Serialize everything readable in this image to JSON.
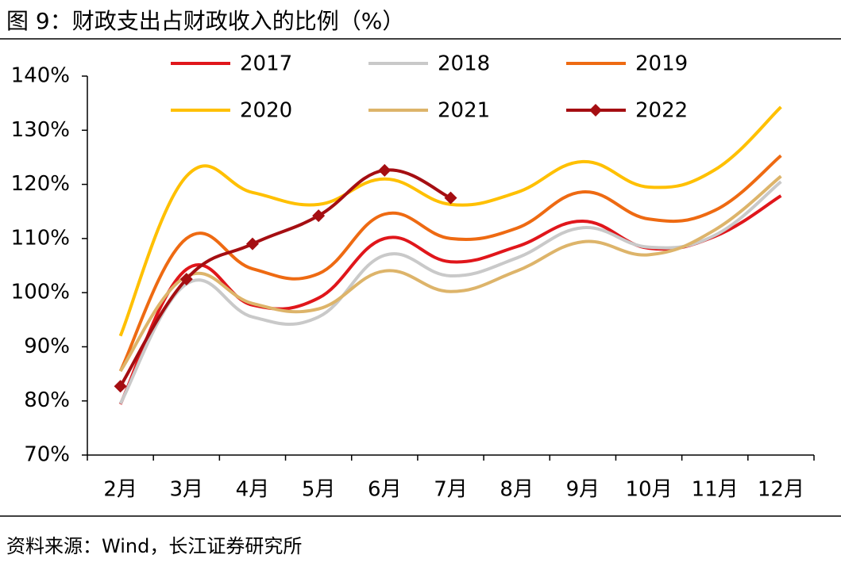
{
  "chart_data": {
    "type": "line",
    "title": "图 9：财政支出占财政收入的比例（%）",
    "source": "资料来源：Wind，长江证券研究所",
    "categories": [
      "2月",
      "3月",
      "4月",
      "5月",
      "6月",
      "7月",
      "8月",
      "9月",
      "10月",
      "11月",
      "12月"
    ],
    "ylim": [
      70,
      140
    ],
    "yticks": [
      {
        "value": 70,
        "label": "70%"
      },
      {
        "value": 80,
        "label": "80%"
      },
      {
        "value": 90,
        "label": "90%"
      },
      {
        "value": 100,
        "label": "100%"
      },
      {
        "value": 110,
        "label": "110%"
      },
      {
        "value": 120,
        "label": "120%"
      },
      {
        "value": 130,
        "label": "130%"
      },
      {
        "value": 140,
        "label": "140%"
      }
    ],
    "series": [
      {
        "name": "2017",
        "color": "#E0161B",
        "values": [
          79.4,
          104.3,
          97.7,
          99,
          110,
          105.7,
          108.5,
          113.2,
          108.2,
          110.4,
          117.9
        ]
      },
      {
        "name": "2018",
        "color": "#C9C9C9",
        "values": [
          79.5,
          101.6,
          95.5,
          95.5,
          106.9,
          103.1,
          106.4,
          112,
          108.4,
          110.6,
          120.5
        ]
      },
      {
        "name": "2019",
        "color": "#EE6A12",
        "values": [
          85.5,
          110,
          104.4,
          103.5,
          114.5,
          110,
          111.9,
          118.6,
          113.6,
          115.2,
          125.3
        ]
      },
      {
        "name": "2020",
        "color": "#FFC000",
        "values": [
          92,
          121.5,
          118.5,
          116.3,
          121,
          116.3,
          118.5,
          124.2,
          119.5,
          122.7,
          134.3
        ]
      },
      {
        "name": "2021",
        "color": "#DDB46A",
        "values": [
          85.5,
          103,
          98,
          97,
          104,
          100.2,
          104,
          109.4,
          107,
          111.6,
          121.5
        ]
      },
      {
        "name": "2022",
        "color": "#A50E12",
        "marker": "diamond",
        "values": [
          82.7,
          102.5,
          109,
          114.2,
          122.6,
          117.5,
          null,
          null,
          null,
          null,
          null
        ]
      }
    ]
  }
}
